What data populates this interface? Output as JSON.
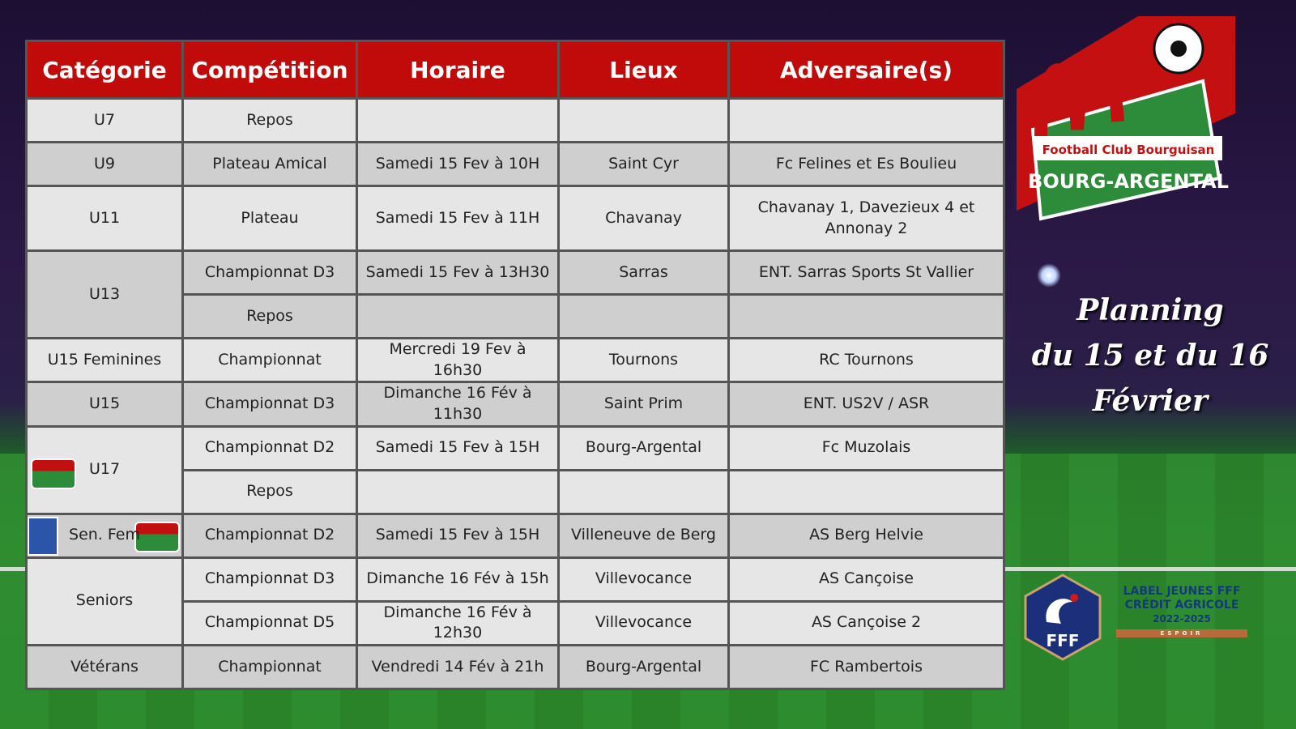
{
  "headers": [
    "Catégorie",
    "Compétition",
    "Horaire",
    "Lieux",
    "Adversaire(s)"
  ],
  "rows": [
    {
      "cat": "U7",
      "comp": "Repos",
      "time": "",
      "place": "",
      "opp": ""
    },
    {
      "cat": "U9",
      "comp": "Plateau Amical",
      "time": "Samedi 15 Fev à 10H",
      "place": "Saint Cyr",
      "opp": "Fc Felines et Es Boulieu"
    },
    {
      "cat": "U11",
      "comp": "Plateau",
      "time": "Samedi 15 Fev à 11H",
      "place": "Chavanay",
      "opp": "Chavanay 1, Davezieux 4 et Annonay 2"
    },
    {
      "cat": "U13",
      "comp": "Championnat D3",
      "time": "Samedi 15 Fev à 13H30",
      "place": "Sarras",
      "opp": "ENT. Sarras Sports St Vallier"
    },
    {
      "cat": "",
      "comp": "Repos",
      "time": "",
      "place": "",
      "opp": ""
    },
    {
      "cat": "U15 Feminines",
      "comp": "Championnat",
      "time": "Mercredi 19 Fev à 16h30",
      "place": "Tournons",
      "opp": "RC Tournons"
    },
    {
      "cat": "U15",
      "comp": "Championnat D3",
      "time": "Dimanche 16 Fév à 11h30",
      "place": "Saint Prim",
      "opp": "ENT. US2V / ASR"
    },
    {
      "cat": "U17",
      "comp": "Championnat D2",
      "time": "Samedi 15 Fev à 15H",
      "place": "Bourg-Argental",
      "opp": "Fc Muzolais"
    },
    {
      "cat": "",
      "comp": "Repos",
      "time": "",
      "place": "",
      "opp": ""
    },
    {
      "cat": "Sen. Fem",
      "comp": "Championnat D2",
      "time": "Samedi 15 Fev à 15H",
      "place": "Villeneuve de Berg",
      "opp": "AS Berg Helvie"
    },
    {
      "cat": "Seniors",
      "comp": "Championnat D3",
      "time": "Dimanche 16 Fév à 15h",
      "place": "Villevocance",
      "opp": "AS Cançoise"
    },
    {
      "cat": "",
      "comp": "Championnat D5",
      "time": "Dimanche 16 Fév à 12h30",
      "place": "Villevocance",
      "opp": "AS Cançoise 2"
    },
    {
      "cat": "Vétérans",
      "comp": "Championnat",
      "time": "Vendredi 14 Fév à 21h",
      "place": "Bourg-Argental",
      "opp": "FC Rambertois"
    }
  ],
  "logo": {
    "line1": "Football Club Bourguisan",
    "line2": "BOURG-ARGENTAL"
  },
  "title": {
    "l1": "Planning",
    "l2": "du 15 et du 16",
    "l3": "Février"
  },
  "label": {
    "l1": "LABEL JEUNES FFF",
    "l2": "CRÉDIT AGRICOLE",
    "years": "2022-2025",
    "level": "ESPOIR",
    "fff": "FFF"
  },
  "colors": {
    "header": "#c10a0a",
    "accent_green": "#2c8c3a",
    "fff_blue": "#1b2f7a"
  }
}
